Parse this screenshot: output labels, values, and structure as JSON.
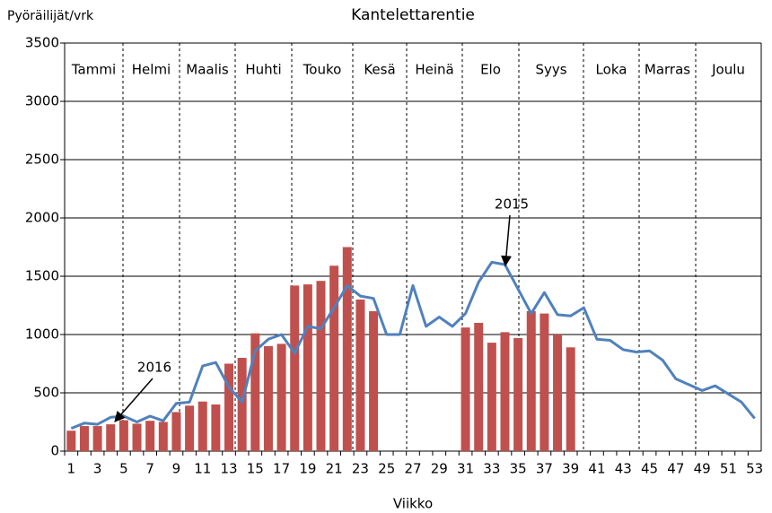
{
  "chart_data": {
    "type": "bar_line",
    "title": "Kantelettarentie",
    "y_label": "Pyöräilijät/vrk",
    "x_label": "Viikko",
    "months": [
      "Tammi",
      "Helmi",
      "Maalis",
      "Huhti",
      "Touko",
      "Kesä",
      "Heinä",
      "Elo",
      "Syys",
      "Loka",
      "Marras",
      "Joulu"
    ],
    "categories": [
      1,
      null,
      3,
      null,
      5,
      null,
      7,
      null,
      9,
      null,
      11,
      null,
      13,
      null,
      15,
      null,
      17,
      null,
      19,
      null,
      21,
      null,
      23,
      null,
      25,
      null,
      27,
      null,
      29,
      null,
      31,
      null,
      33,
      null,
      35,
      null,
      37,
      null,
      39,
      null,
      41,
      null,
      43,
      null,
      45,
      null,
      47,
      null,
      49,
      null,
      51,
      null,
      53
    ],
    "series": [
      {
        "name": "2016",
        "kind": "bar",
        "color": "#c0504d",
        "values": [
          175,
          215,
          215,
          230,
          265,
          235,
          260,
          250,
          335,
          390,
          425,
          400,
          750,
          800,
          1010,
          900,
          920,
          1420,
          1430,
          1460,
          1590,
          1750,
          1300,
          1200,
          null,
          null,
          null,
          null,
          null,
          null,
          1060,
          1100,
          930,
          1020,
          970,
          1200,
          1180,
          1000,
          890,
          null,
          null,
          null,
          null,
          null,
          null,
          null,
          null,
          null,
          null,
          null,
          null,
          null,
          null
        ]
      },
      {
        "name": "2015",
        "kind": "line",
        "color": "#4f81bd",
        "values": [
          195,
          240,
          230,
          290,
          300,
          250,
          300,
          260,
          410,
          420,
          730,
          760,
          550,
          420,
          860,
          960,
          1000,
          840,
          1070,
          1050,
          1230,
          1420,
          1330,
          1310,
          1000,
          1000,
          1420,
          1070,
          1150,
          1070,
          1180,
          1450,
          1620,
          1600,
          1390,
          1180,
          1360,
          1170,
          1160,
          1230,
          960,
          950,
          870,
          850,
          860,
          780,
          620,
          570,
          520,
          560,
          490,
          420,
          280
        ]
      }
    ],
    "ylim": [
      0,
      3500
    ],
    "yticks": [
      0,
      500,
      1000,
      1500,
      2000,
      2500,
      3000,
      3500
    ],
    "grid": true
  }
}
